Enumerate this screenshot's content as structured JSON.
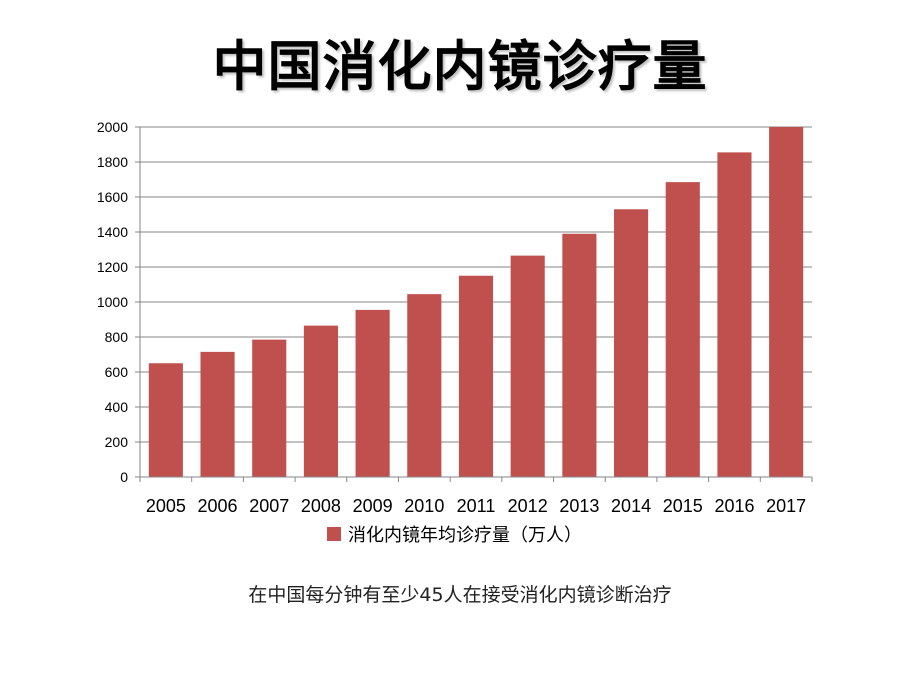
{
  "slide": {
    "title": "中国消化内镜诊疗量",
    "caption": "在中国每分钟有至少45人在接受消化内镜诊断治疗"
  },
  "chart_data": {
    "type": "bar",
    "categories": [
      "2005",
      "2006",
      "2007",
      "2008",
      "2009",
      "2010",
      "2011",
      "2012",
      "2013",
      "2014",
      "2015",
      "2016",
      "2017"
    ],
    "series": [
      {
        "name": "消化内镜年均诊疗量（万人）",
        "values": [
          650,
          715,
          785,
          865,
          955,
          1045,
          1150,
          1265,
          1390,
          1530,
          1685,
          1855,
          2000
        ],
        "color": "#c0504d"
      }
    ],
    "yticks": [
      "0",
      "200",
      "400",
      "600",
      "800",
      "1000",
      "1200",
      "1400",
      "1600",
      "1800",
      "2000"
    ],
    "ylim": [
      0,
      2000
    ],
    "grid": true,
    "legend_position": "bottom",
    "title": "",
    "xlabel": "",
    "ylabel": ""
  }
}
